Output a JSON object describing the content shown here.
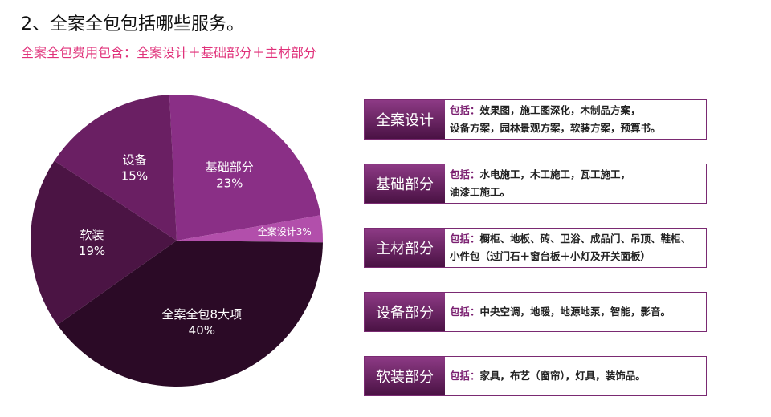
{
  "header": {
    "title": "2、全案全包包括哪些服务。",
    "subtitle": "全案全包费用包含：全案设计＋基础部分＋主材部分"
  },
  "chart_data": {
    "type": "pie",
    "categories": [
      "基础部分",
      "全案设计",
      "全案全包8大项",
      "软装",
      "设备"
    ],
    "values": [
      23,
      3,
      40,
      19,
      15
    ],
    "value_labels": [
      "23%",
      "3%",
      "40%",
      "19%",
      "15%"
    ],
    "colors": [
      "#8a2f86",
      "#b24fab",
      "#2b0a26",
      "#4b1444",
      "#6a1f63"
    ]
  },
  "services": [
    {
      "title": "全案设计",
      "label": "包括：",
      "lines": [
        "效果图，施工图深化，木制品方案，",
        "设备方案，园林景观方案，软装方案，预算书。"
      ]
    },
    {
      "title": "基础部分",
      "label": "包括：",
      "lines": [
        "水电施工，木工施工，瓦工施工，",
        "油漆工施工。"
      ]
    },
    {
      "title": "主材部分",
      "label": "包括：",
      "lines": [
        "橱柜、地板、砖、卫浴、成品门、吊顶、鞋柜、",
        "小件包（过门石＋窗台板＋小灯及开关面板）"
      ]
    },
    {
      "title": "设备部分",
      "label": "包括：",
      "lines": [
        "中央空调，地暖，地源地泵，智能，影音。"
      ]
    },
    {
      "title": "软装部分",
      "label": "包括：",
      "lines": [
        "家具，布艺（窗帘），灯具，装饰品。"
      ]
    }
  ]
}
